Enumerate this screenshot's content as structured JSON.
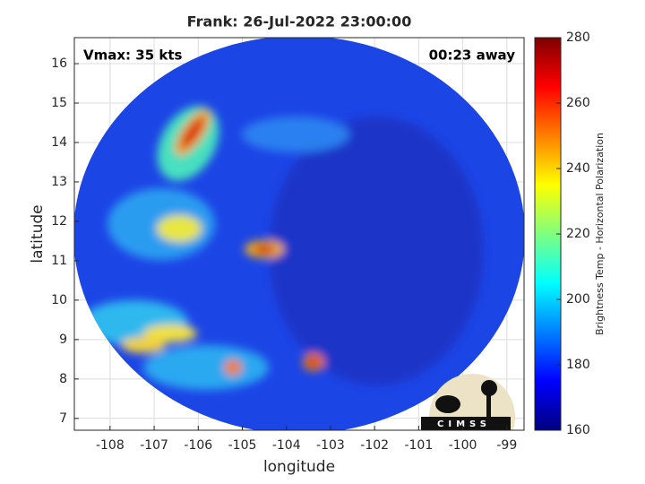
{
  "chart_data": {
    "type": "map",
    "title": "Frank: 26-Jul-2022 23:00:00",
    "xlabel": "longitude",
    "ylabel": "latitude",
    "xlim": [
      -108.81,
      -98.61
    ],
    "ylim": [
      6.7,
      16.66
    ],
    "xticks": [
      -108,
      -107,
      -106,
      -105,
      -104,
      -103,
      -102,
      -101,
      -100,
      -99
    ],
    "yticks": [
      7,
      8,
      9,
      10,
      11,
      12,
      13,
      14,
      15,
      16
    ],
    "grid": true,
    "annotations": [
      "Vmax: 35 kts",
      "00:23 away"
    ],
    "logo": "CIMSS",
    "colorbar": {
      "label": "Brightness Temp - Horizontal Polarization",
      "colormap": "jet",
      "lim": [
        160,
        280
      ],
      "ticks": [
        160,
        180,
        200,
        220,
        240,
        260,
        280
      ]
    }
  }
}
